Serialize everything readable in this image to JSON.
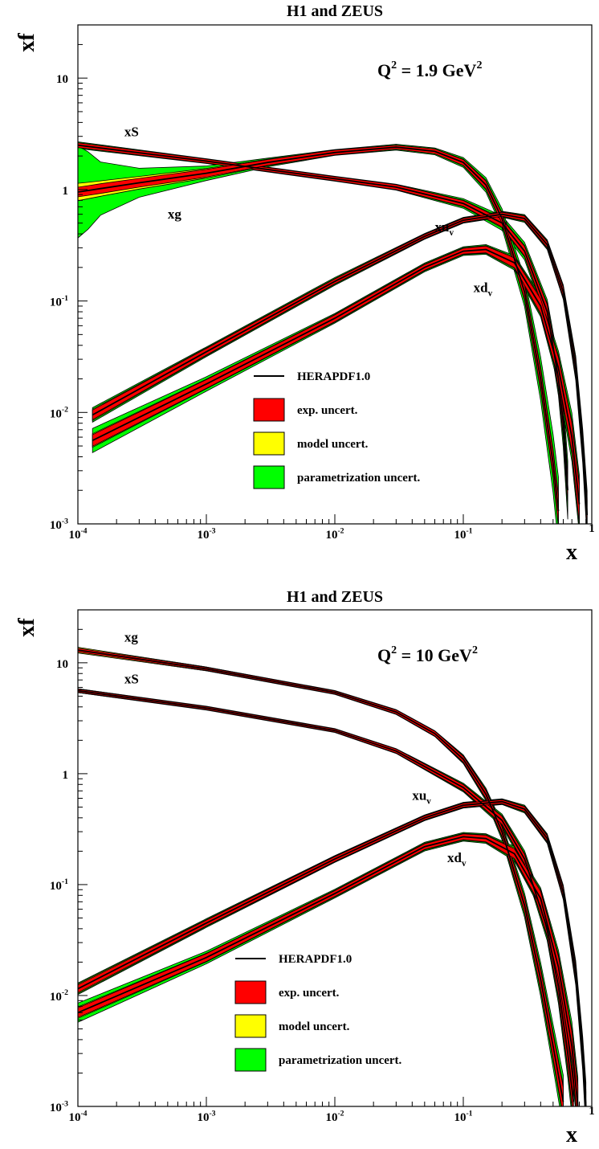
{
  "chart_data": [
    {
      "type": "line",
      "title": "H1 and ZEUS",
      "ylabel": "xf",
      "xlabel": "x",
      "q2_prefix": "Q",
      "q2_exp": "2",
      "q2_value": " =   1.9 GeV",
      "q2_unit_exp": "2",
      "x_scale": "log",
      "y_scale": "log",
      "xlim": [
        0.0001,
        1
      ],
      "ylim": [
        0.001,
        30
      ],
      "x_ticks": [
        {
          "base": "10",
          "exp": "-4"
        },
        {
          "base": "10",
          "exp": "-3"
        },
        {
          "base": "10",
          "exp": "-2"
        },
        {
          "base": "10",
          "exp": "-1"
        },
        {
          "base": "1",
          "exp": ""
        }
      ],
      "y_ticks": [
        {
          "base": "10",
          "exp": "-3"
        },
        {
          "base": "10",
          "exp": "-2"
        },
        {
          "base": "10",
          "exp": "-1"
        },
        {
          "base": "1",
          "exp": ""
        },
        {
          "base": "10",
          "exp": ""
        }
      ],
      "legend": {
        "placement": "lower-center",
        "items": [
          {
            "label": "HERAPDF1.0",
            "kind": "line",
            "color": "#000000"
          },
          {
            "label": "exp. uncert.",
            "kind": "box",
            "color": "#ff0000"
          },
          {
            "label": "model uncert.",
            "kind": "box",
            "color": "#ffff00"
          },
          {
            "label": "parametrization uncert.",
            "kind": "box",
            "color": "#00ff00"
          }
        ]
      },
      "colors": {
        "exp": "#ff0000",
        "model": "#ffff00",
        "param": "#00ff00",
        "central": "#000000"
      },
      "series": [
        {
          "label_base": "xS",
          "label_sub": "",
          "label_x": 0.00023,
          "label_y": 3.0,
          "points": [
            {
              "x": 0.0001,
              "c": 2.5,
              "e": 0.05,
              "m": 0.05,
              "p": 0.07
            },
            {
              "x": 0.001,
              "c": 1.8,
              "e": 0.04,
              "m": 0.04,
              "p": 0.05
            },
            {
              "x": 0.01,
              "c": 1.25,
              "e": 0.04,
              "m": 0.04,
              "p": 0.05
            },
            {
              "x": 0.03,
              "c": 1.05,
              "e": 0.05,
              "m": 0.05,
              "p": 0.06
            },
            {
              "x": 0.1,
              "c": 0.75,
              "e": 0.06,
              "m": 0.07,
              "p": 0.1
            },
            {
              "x": 0.2,
              "c": 0.5,
              "e": 0.08,
              "m": 0.1,
              "p": 0.15
            },
            {
              "x": 0.3,
              "c": 0.28,
              "e": 0.1,
              "m": 0.12,
              "p": 0.18
            },
            {
              "x": 0.45,
              "c": 0.08,
              "e": 0.15,
              "m": 0.18,
              "p": 0.25
            },
            {
              "x": 0.55,
              "c": 0.02,
              "e": 0.2,
              "m": 0.25,
              "p": 0.35
            },
            {
              "x": 0.6,
              "c": 0.008,
              "e": 0.25,
              "m": 0.3,
              "p": 0.5
            },
            {
              "x": 0.65,
              "c": 0.002,
              "e": 0.3,
              "m": 0.35,
              "p": 0.6
            }
          ]
        },
        {
          "label_base": "xg",
          "label_sub": "",
          "label_x": 0.0005,
          "label_y": 0.55,
          "points": [
            {
              "x": 0.0001,
              "c": 0.95,
              "e": 0.1,
              "m": 0.18,
              "p": 0.95
            },
            {
              "x": 0.00012,
              "c": 0.98,
              "e": 0.1,
              "m": 0.17,
              "p": 0.8
            },
            {
              "x": 0.00015,
              "c": 1.02,
              "e": 0.1,
              "m": 0.16,
              "p": 0.55
            },
            {
              "x": 0.0003,
              "c": 1.15,
              "e": 0.09,
              "m": 0.13,
              "p": 0.3
            },
            {
              "x": 0.001,
              "c": 1.4,
              "e": 0.08,
              "m": 0.1,
              "p": 0.15
            },
            {
              "x": 0.003,
              "c": 1.75,
              "e": 0.06,
              "m": 0.07,
              "p": 0.09
            },
            {
              "x": 0.01,
              "c": 2.15,
              "e": 0.05,
              "m": 0.05,
              "p": 0.06
            },
            {
              "x": 0.03,
              "c": 2.4,
              "e": 0.04,
              "m": 0.04,
              "p": 0.06
            },
            {
              "x": 0.06,
              "c": 2.2,
              "e": 0.05,
              "m": 0.05,
              "p": 0.07
            },
            {
              "x": 0.1,
              "c": 1.75,
              "e": 0.06,
              "m": 0.07,
              "p": 0.1
            },
            {
              "x": 0.15,
              "c": 1.1,
              "e": 0.08,
              "m": 0.1,
              "p": 0.15
            },
            {
              "x": 0.2,
              "c": 0.55,
              "e": 0.1,
              "m": 0.12,
              "p": 0.2
            },
            {
              "x": 0.3,
              "c": 0.12,
              "e": 0.15,
              "m": 0.18,
              "p": 0.3
            },
            {
              "x": 0.4,
              "c": 0.02,
              "e": 0.2,
              "m": 0.25,
              "p": 0.45
            },
            {
              "x": 0.5,
              "c": 0.0035,
              "e": 0.25,
              "m": 0.3,
              "p": 0.6
            },
            {
              "x": 0.55,
              "c": 0.0013,
              "e": 0.3,
              "m": 0.35,
              "p": 0.7
            }
          ]
        },
        {
          "label_base": "xu",
          "label_sub": "v",
          "label_x": 0.06,
          "label_y": 0.42,
          "points": [
            {
              "x": 0.00013,
              "c": 0.0095,
              "e": 0.1,
              "m": 0.12,
              "p": 0.15
            },
            {
              "x": 0.001,
              "c": 0.035,
              "e": 0.07,
              "m": 0.08,
              "p": 0.1
            },
            {
              "x": 0.01,
              "c": 0.15,
              "e": 0.05,
              "m": 0.06,
              "p": 0.08
            },
            {
              "x": 0.05,
              "c": 0.38,
              "e": 0.04,
              "m": 0.05,
              "p": 0.06
            },
            {
              "x": 0.1,
              "c": 0.53,
              "e": 0.04,
              "m": 0.05,
              "p": 0.06
            },
            {
              "x": 0.2,
              "c": 0.6,
              "e": 0.04,
              "m": 0.05,
              "p": 0.06
            },
            {
              "x": 0.3,
              "c": 0.55,
              "e": 0.05,
              "m": 0.06,
              "p": 0.08
            },
            {
              "x": 0.45,
              "c": 0.32,
              "e": 0.06,
              "m": 0.08,
              "p": 0.1
            },
            {
              "x": 0.6,
              "c": 0.12,
              "e": 0.1,
              "m": 0.12,
              "p": 0.15
            },
            {
              "x": 0.75,
              "c": 0.025,
              "e": 0.15,
              "m": 0.18,
              "p": 0.25
            },
            {
              "x": 0.85,
              "c": 0.005,
              "e": 0.2,
              "m": 0.25,
              "p": 0.35
            },
            {
              "x": 0.92,
              "c": 0.0012,
              "e": 0.3,
              "m": 0.35,
              "p": 0.5
            }
          ]
        },
        {
          "label_base": "xd",
          "label_sub": "v",
          "label_x": 0.12,
          "label_y": 0.12,
          "points": [
            {
              "x": 0.00013,
              "c": 0.0056,
              "e": 0.12,
              "m": 0.14,
              "p": 0.25
            },
            {
              "x": 0.001,
              "c": 0.018,
              "e": 0.09,
              "m": 0.1,
              "p": 0.15
            },
            {
              "x": 0.01,
              "c": 0.07,
              "e": 0.07,
              "m": 0.08,
              "p": 0.1
            },
            {
              "x": 0.05,
              "c": 0.2,
              "e": 0.06,
              "m": 0.07,
              "p": 0.09
            },
            {
              "x": 0.1,
              "c": 0.28,
              "e": 0.06,
              "m": 0.07,
              "p": 0.09
            },
            {
              "x": 0.15,
              "c": 0.29,
              "e": 0.07,
              "m": 0.08,
              "p": 0.1
            },
            {
              "x": 0.25,
              "c": 0.22,
              "e": 0.1,
              "m": 0.12,
              "p": 0.15
            },
            {
              "x": 0.4,
              "c": 0.09,
              "e": 0.15,
              "m": 0.18,
              "p": 0.22
            },
            {
              "x": 0.55,
              "c": 0.025,
              "e": 0.22,
              "m": 0.26,
              "p": 0.35
            },
            {
              "x": 0.7,
              "c": 0.006,
              "e": 0.3,
              "m": 0.35,
              "p": 0.5
            },
            {
              "x": 0.8,
              "c": 0.0015,
              "e": 0.4,
              "m": 0.45,
              "p": 0.6
            }
          ]
        }
      ]
    },
    {
      "type": "line",
      "title": "H1 and ZEUS",
      "ylabel": "xf",
      "xlabel": "x",
      "q2_prefix": "Q",
      "q2_exp": "2",
      "q2_value": " = 10 GeV",
      "q2_unit_exp": "2",
      "x_scale": "log",
      "y_scale": "log",
      "xlim": [
        0.0001,
        1
      ],
      "ylim": [
        0.001,
        30
      ],
      "x_ticks": [
        {
          "base": "10",
          "exp": "-4"
        },
        {
          "base": "10",
          "exp": "-3"
        },
        {
          "base": "10",
          "exp": "-2"
        },
        {
          "base": "10",
          "exp": "-1"
        },
        {
          "base": "1",
          "exp": ""
        }
      ],
      "y_ticks": [
        {
          "base": "10",
          "exp": "-3"
        },
        {
          "base": "10",
          "exp": "-2"
        },
        {
          "base": "10",
          "exp": "-1"
        },
        {
          "base": "1",
          "exp": ""
        },
        {
          "base": "10",
          "exp": ""
        }
      ],
      "legend": {
        "placement": "lower-center",
        "items": [
          {
            "label": "HERAPDF1.0",
            "kind": "line",
            "color": "#000000"
          },
          {
            "label": "exp. uncert.",
            "kind": "box",
            "color": "#ff0000"
          },
          {
            "label": "model uncert.",
            "kind": "box",
            "color": "#ffff00"
          },
          {
            "label": "parametrization uncert.",
            "kind": "box",
            "color": "#00ff00"
          }
        ]
      },
      "colors": {
        "exp": "#ff0000",
        "model": "#ffff00",
        "param": "#00ff00",
        "central": "#000000"
      },
      "series": [
        {
          "label_base": "xg",
          "label_sub": "",
          "label_x": 0.00023,
          "label_y": 15.5,
          "points": [
            {
              "x": 0.0001,
              "c": 13.0,
              "e": 0.04,
              "m": 0.06,
              "p": 0.05
            },
            {
              "x": 0.001,
              "c": 8.8,
              "e": 0.03,
              "m": 0.04,
              "p": 0.04
            },
            {
              "x": 0.01,
              "c": 5.4,
              "e": 0.03,
              "m": 0.03,
              "p": 0.04
            },
            {
              "x": 0.03,
              "c": 3.6,
              "e": 0.04,
              "m": 0.04,
              "p": 0.05
            },
            {
              "x": 0.06,
              "c": 2.3,
              "e": 0.05,
              "m": 0.05,
              "p": 0.06
            },
            {
              "x": 0.1,
              "c": 1.35,
              "e": 0.06,
              "m": 0.07,
              "p": 0.09
            },
            {
              "x": 0.15,
              "c": 0.65,
              "e": 0.08,
              "m": 0.1,
              "p": 0.13
            },
            {
              "x": 0.2,
              "c": 0.3,
              "e": 0.1,
              "m": 0.12,
              "p": 0.17
            },
            {
              "x": 0.3,
              "c": 0.065,
              "e": 0.15,
              "m": 0.17,
              "p": 0.25
            },
            {
              "x": 0.4,
              "c": 0.014,
              "e": 0.2,
              "m": 0.24,
              "p": 0.35
            },
            {
              "x": 0.5,
              "c": 0.0035,
              "e": 0.25,
              "m": 0.3,
              "p": 0.45
            },
            {
              "x": 0.6,
              "c": 0.0011,
              "e": 0.3,
              "m": 0.35,
              "p": 0.55
            }
          ]
        },
        {
          "label_base": "xS",
          "label_sub": "",
          "label_x": 0.00023,
          "label_y": 6.5,
          "points": [
            {
              "x": 0.0001,
              "c": 5.6,
              "e": 0.03,
              "m": 0.04,
              "p": 0.04
            },
            {
              "x": 0.001,
              "c": 3.9,
              "e": 0.03,
              "m": 0.03,
              "p": 0.04
            },
            {
              "x": 0.01,
              "c": 2.45,
              "e": 0.03,
              "m": 0.03,
              "p": 0.04
            },
            {
              "x": 0.03,
              "c": 1.6,
              "e": 0.04,
              "m": 0.04,
              "p": 0.05
            },
            {
              "x": 0.1,
              "c": 0.75,
              "e": 0.06,
              "m": 0.07,
              "p": 0.09
            },
            {
              "x": 0.2,
              "c": 0.38,
              "e": 0.08,
              "m": 0.1,
              "p": 0.13
            },
            {
              "x": 0.3,
              "c": 0.17,
              "e": 0.1,
              "m": 0.12,
              "p": 0.17
            },
            {
              "x": 0.45,
              "c": 0.04,
              "e": 0.15,
              "m": 0.18,
              "p": 0.25
            },
            {
              "x": 0.55,
              "c": 0.012,
              "e": 0.2,
              "m": 0.25,
              "p": 0.35
            },
            {
              "x": 0.65,
              "c": 0.003,
              "e": 0.3,
              "m": 0.35,
              "p": 0.5
            },
            {
              "x": 0.72,
              "c": 0.0011,
              "e": 0.35,
              "m": 0.4,
              "p": 0.6
            }
          ]
        },
        {
          "label_base": "xu",
          "label_sub": "v",
          "label_x": 0.04,
          "label_y": 0.58,
          "points": [
            {
              "x": 0.0001,
              "c": 0.0115,
              "e": 0.08,
              "m": 0.1,
              "p": 0.12
            },
            {
              "x": 0.001,
              "c": 0.045,
              "e": 0.06,
              "m": 0.07,
              "p": 0.09
            },
            {
              "x": 0.01,
              "c": 0.17,
              "e": 0.05,
              "m": 0.06,
              "p": 0.07
            },
            {
              "x": 0.05,
              "c": 0.4,
              "e": 0.04,
              "m": 0.05,
              "p": 0.06
            },
            {
              "x": 0.1,
              "c": 0.52,
              "e": 0.04,
              "m": 0.05,
              "p": 0.06
            },
            {
              "x": 0.2,
              "c": 0.56,
              "e": 0.04,
              "m": 0.05,
              "p": 0.06
            },
            {
              "x": 0.3,
              "c": 0.48,
              "e": 0.05,
              "m": 0.06,
              "p": 0.08
            },
            {
              "x": 0.45,
              "c": 0.26,
              "e": 0.06,
              "m": 0.08,
              "p": 0.1
            },
            {
              "x": 0.6,
              "c": 0.085,
              "e": 0.1,
              "m": 0.12,
              "p": 0.15
            },
            {
              "x": 0.75,
              "c": 0.016,
              "e": 0.15,
              "m": 0.18,
              "p": 0.25
            },
            {
              "x": 0.85,
              "c": 0.003,
              "e": 0.2,
              "m": 0.25,
              "p": 0.35
            },
            {
              "x": 0.9,
              "c": 0.001,
              "e": 0.3,
              "m": 0.35,
              "p": 0.5
            }
          ]
        },
        {
          "label_base": "xd",
          "label_sub": "v",
          "label_x": 0.075,
          "label_y": 0.16,
          "points": [
            {
              "x": 0.0001,
              "c": 0.007,
              "e": 0.1,
              "m": 0.12,
              "p": 0.2
            },
            {
              "x": 0.001,
              "c": 0.022,
              "e": 0.08,
              "m": 0.09,
              "p": 0.13
            },
            {
              "x": 0.01,
              "c": 0.083,
              "e": 0.06,
              "m": 0.07,
              "p": 0.09
            },
            {
              "x": 0.05,
              "c": 0.22,
              "e": 0.06,
              "m": 0.07,
              "p": 0.09
            },
            {
              "x": 0.1,
              "c": 0.27,
              "e": 0.06,
              "m": 0.07,
              "p": 0.09
            },
            {
              "x": 0.15,
              "c": 0.26,
              "e": 0.07,
              "m": 0.08,
              "p": 0.1
            },
            {
              "x": 0.25,
              "c": 0.19,
              "e": 0.1,
              "m": 0.12,
              "p": 0.15
            },
            {
              "x": 0.4,
              "c": 0.075,
              "e": 0.15,
              "m": 0.18,
              "p": 0.22
            },
            {
              "x": 0.55,
              "c": 0.018,
              "e": 0.22,
              "m": 0.26,
              "p": 0.35
            },
            {
              "x": 0.7,
              "c": 0.0035,
              "e": 0.3,
              "m": 0.35,
              "p": 0.5
            },
            {
              "x": 0.78,
              "c": 0.001,
              "e": 0.4,
              "m": 0.45,
              "p": 0.6
            }
          ]
        }
      ]
    }
  ]
}
